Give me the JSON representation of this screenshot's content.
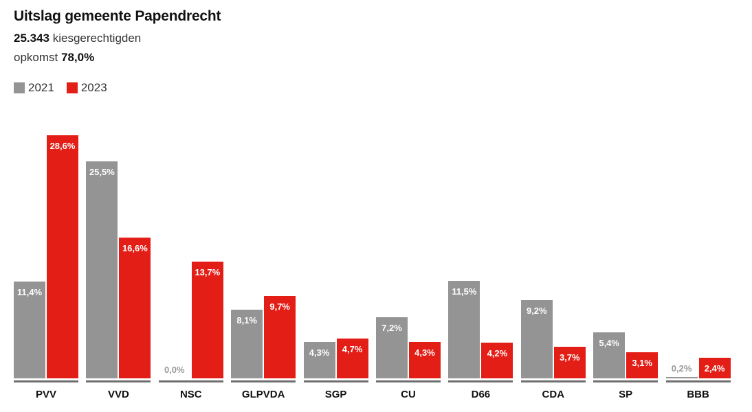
{
  "title": "Uitslag gemeente Papendrecht",
  "voters_value": "25.343",
  "voters_label": "kiesgerechtigden",
  "turnout_label": "opkomst",
  "turnout_value": "78,0%",
  "chart_data": {
    "type": "bar",
    "title": "Uitslag gemeente Papendrecht",
    "categories": [
      "PVV",
      "VVD",
      "NSC",
      "GLPVDA",
      "SGP",
      "CU",
      "D66",
      "CDA",
      "SP",
      "BBB"
    ],
    "series": [
      {
        "name": "2021",
        "color": "#949494",
        "values": [
          11.4,
          25.5,
          0.0,
          8.1,
          4.3,
          7.2,
          11.5,
          9.2,
          5.4,
          0.2
        ],
        "labels": [
          "11,4%",
          "25,5%",
          "0,0%",
          "8,1%",
          "4,3%",
          "7,2%",
          "11,5%",
          "9,2%",
          "5,4%",
          "0,2%"
        ]
      },
      {
        "name": "2023",
        "color": "#e31e16",
        "values": [
          28.6,
          16.6,
          13.7,
          9.7,
          4.7,
          4.3,
          4.2,
          3.7,
          3.1,
          2.4
        ],
        "labels": [
          "28,6%",
          "16,6%",
          "13,7%",
          "9,7%",
          "4,7%",
          "4,3%",
          "4,2%",
          "3,7%",
          "3,1%",
          "2,4%"
        ]
      }
    ],
    "ylabel": "",
    "xlabel": "",
    "ylim": [
      0,
      30
    ],
    "grid": false,
    "legend": "top-left"
  }
}
